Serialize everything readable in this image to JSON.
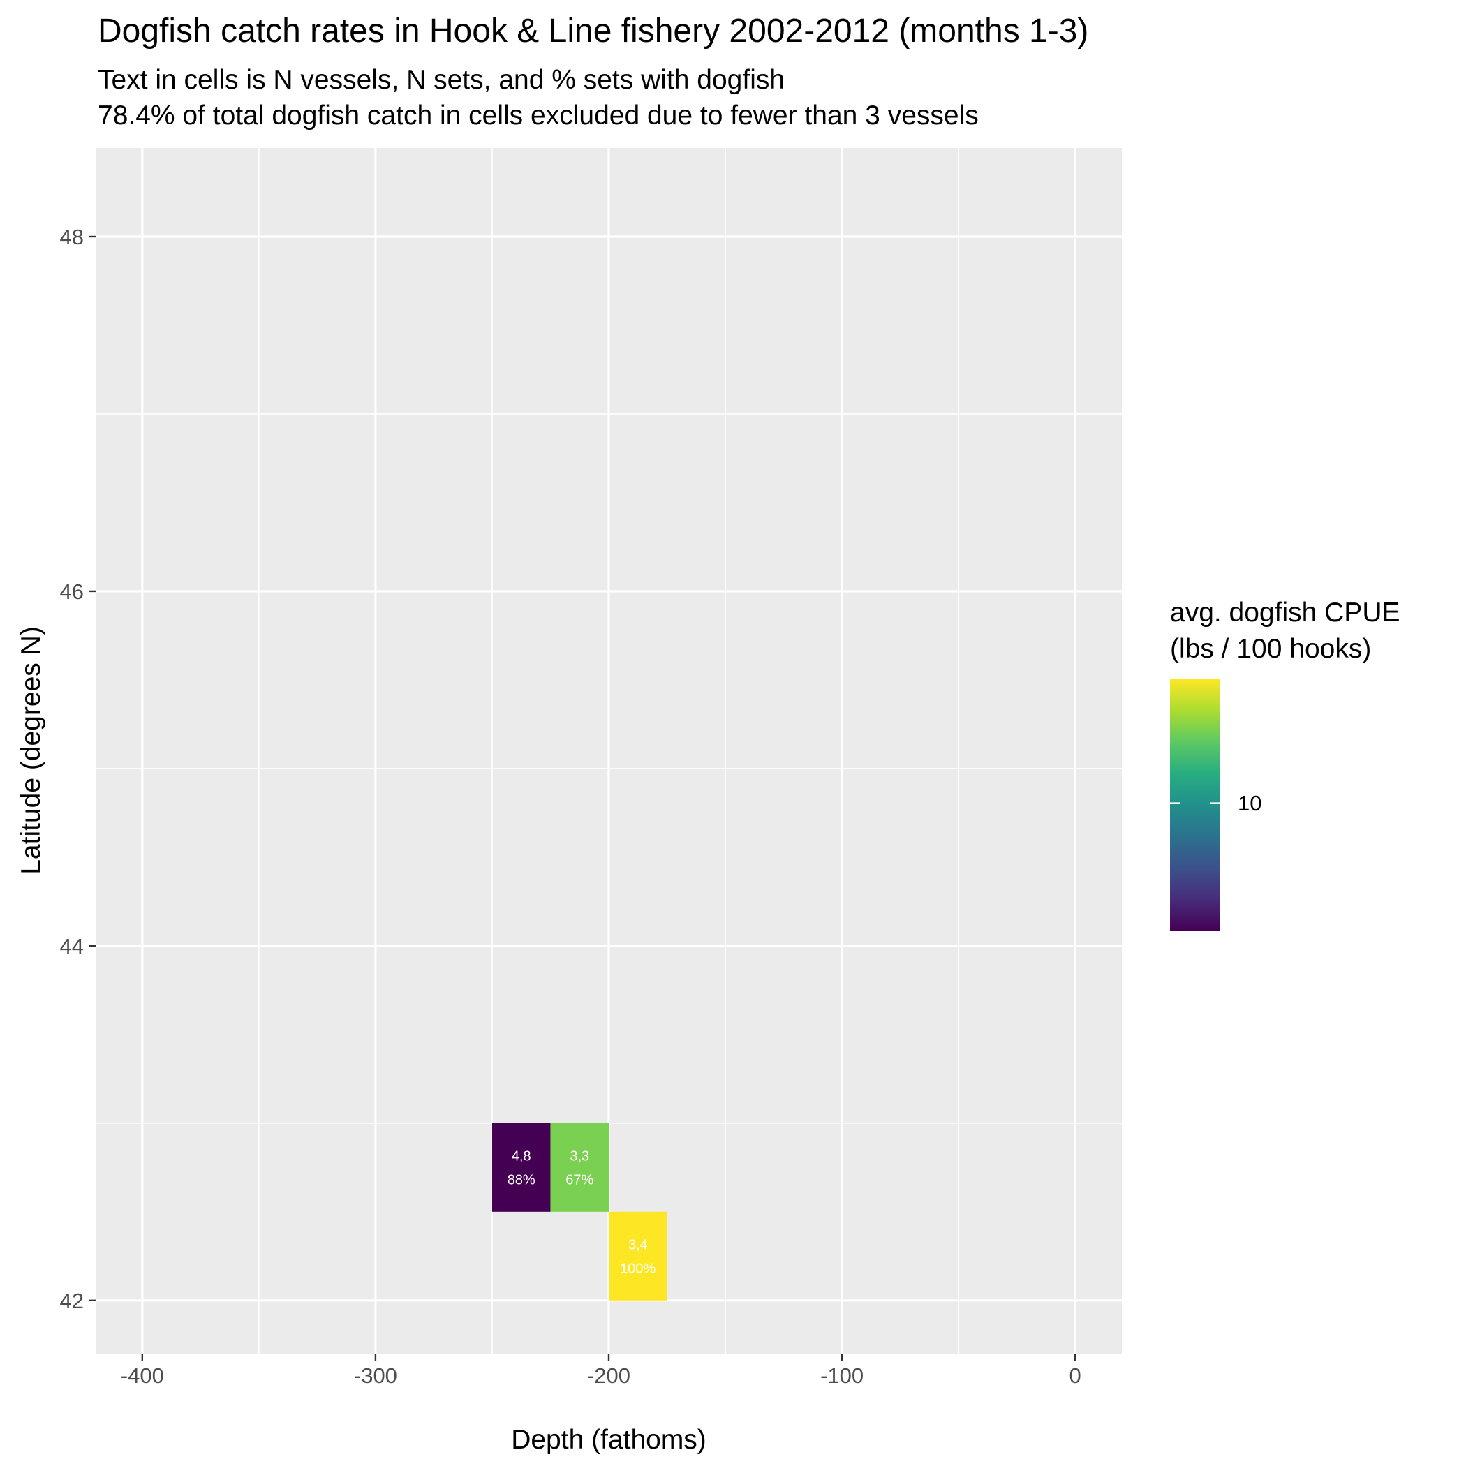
{
  "chart_data": {
    "type": "heatmap",
    "title": "Dogfish catch rates in Hook & Line fishery 2002-2012 (months 1-3)",
    "subtitle": [
      "Text in cells is N vessels, N sets, and % sets with dogfish",
      "78.4% of total dogfish catch in cells excluded due to fewer than 3 vessels"
    ],
    "xlabel": "Depth (fathoms)",
    "ylabel": "Latitude (degrees N)",
    "xlim": [
      -420,
      20
    ],
    "ylim": [
      41.7,
      48.5
    ],
    "x_ticks": [
      -400,
      -300,
      -200,
      -100,
      0
    ],
    "x_tick_labels": [
      "-400",
      "-300",
      "-200",
      "-100",
      "0"
    ],
    "y_ticks": [
      42,
      44,
      46,
      48
    ],
    "y_tick_labels": [
      "42",
      "44",
      "46",
      "48"
    ],
    "grid": true,
    "legend": {
      "title": [
        "avg. dogfish CPUE",
        "(lbs / 100 hooks)"
      ],
      "placement": "right",
      "range": [
        6.1,
        13.8
      ],
      "ticks": [
        10
      ],
      "tick_labels": [
        "10"
      ],
      "palette": "viridis"
    },
    "cells": [
      {
        "x_min": -250,
        "x_max": -225,
        "y_min": 42.5,
        "y_max": 43.0,
        "value": 6.1,
        "color": "#440154",
        "line1": "4,8",
        "line2": "88%"
      },
      {
        "x_min": -225,
        "x_max": -200,
        "y_min": 42.5,
        "y_max": 43.0,
        "value": 12.6,
        "color": "#7AD151",
        "line1": "3,3",
        "line2": "67%"
      },
      {
        "x_min": -200,
        "x_max": -175,
        "y_min": 42.0,
        "y_max": 42.5,
        "value": 13.8,
        "color": "#FDE725",
        "line1": "3,4",
        "line2": "100%"
      }
    ]
  }
}
